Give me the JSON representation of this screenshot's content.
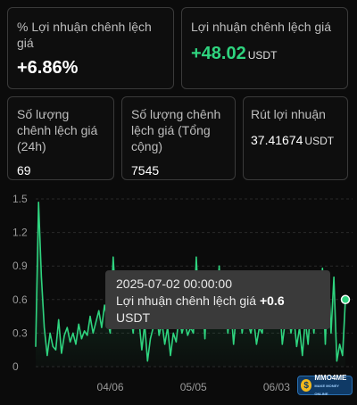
{
  "cards": {
    "profit_percent": {
      "label": "% Lợi nhuận chênh lệch giá",
      "value": "+6.86%"
    },
    "profit_amount": {
      "label": "Lợi nhuận chênh lệch giá",
      "value": "+48.02",
      "unit": "USDT"
    },
    "count_24h": {
      "label": "Số lượng chênh lệch giá (24h)",
      "value": "69"
    },
    "count_total": {
      "label": "Số lượng chênh lệch giá (Tổng cộng)",
      "value": "7545"
    },
    "withdraw": {
      "label": "Rút lợi nhuận",
      "value": "37.41674",
      "unit": "USDT"
    }
  },
  "tooltip": {
    "datetime": "2025-07-02 00:00:00",
    "label": "Lợi nhuận chênh lệch giá",
    "value": "+0.6",
    "unit": "USDT"
  },
  "logo": {
    "text": "MMO4ME",
    "sub": "MAKE MONEY ONLINE"
  },
  "colors": {
    "accent": "#2fd47f",
    "background": "#0b0b0b"
  },
  "chart_data": {
    "type": "area",
    "ylim": [
      0,
      1.5
    ],
    "y_ticks": [
      "1.5",
      "1.2",
      "0.9",
      "0.6",
      "0.3",
      "0"
    ],
    "x_ticks": [
      "04/06",
      "05/05",
      "06/03"
    ],
    "x_tick_index": [
      26,
      55,
      84
    ],
    "values": [
      0.18,
      1.47,
      0.8,
      0.35,
      0.1,
      0.3,
      0.18,
      0.15,
      0.42,
      0.12,
      0.28,
      0.35,
      0.22,
      0.3,
      0.2,
      0.38,
      0.25,
      0.32,
      0.28,
      0.45,
      0.3,
      0.4,
      0.5,
      0.35,
      0.55,
      0.42,
      0.3,
      0.98,
      0.55,
      0.72,
      0.4,
      0.58,
      0.35,
      0.48,
      0.3,
      0.6,
      0.42,
      0.15,
      0.38,
      0.05,
      0.25,
      0.35,
      0.55,
      0.28,
      0.4,
      0.2,
      0.35,
      0.1,
      0.3,
      0.22,
      0.45,
      0.3,
      0.4,
      0.28,
      0.35,
      0.3,
      0.98,
      0.45,
      0.7,
      0.25,
      0.85,
      0.4,
      0.82,
      0.5,
      0.9,
      0.35,
      0.72,
      0.3,
      0.55,
      0.2,
      0.48,
      0.58,
      0.3,
      0.5,
      0.4,
      0.3,
      0.42,
      0.2,
      0.35,
      0.3,
      0.55,
      0.42,
      0.45,
      0.5,
      0.35,
      0.6,
      0.2,
      0.4,
      0.52,
      0.3,
      0.45,
      0.18,
      0.35,
      0.1,
      0.42,
      0.2,
      0.58,
      0.3,
      0.6,
      0.35,
      0.88,
      0.2,
      0.85,
      0.3,
      0.8,
      0.05,
      0.2,
      0.1,
      0.6
    ]
  }
}
